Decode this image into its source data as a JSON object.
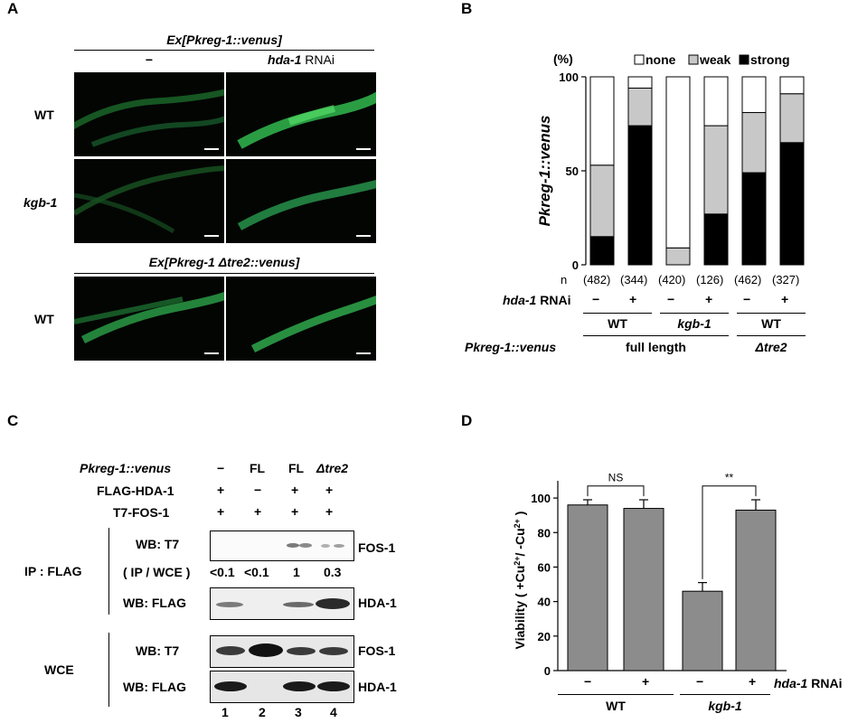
{
  "panelA": {
    "letter": "A",
    "construct1": "Ex[Pkreg-1::venus]",
    "col_minus": "−",
    "col_rnai_gene": "hda-1",
    "col_rnai_suffix": " RNAi",
    "row_wt": "WT",
    "row_kgb1": "kgb-1",
    "construct2": "Ex[Pkreg-1 Δtre2::venus]",
    "row_wt2": "WT",
    "image_colors": {
      "background": "#030503",
      "worm": "#2fae4a",
      "scale_bar": "#ffffff"
    }
  },
  "panelB": {
    "letter": "B",
    "ylabel": "Pkreg-1::venus",
    "legend": {
      "none": "none",
      "weak": "weak",
      "strong": "strong"
    },
    "n_label": "n",
    "n_values": [
      "(482)",
      "(344)",
      "(420)",
      "(126)",
      "(462)",
      "(327)"
    ],
    "rnai_label_gene": "hda-1",
    "rnai_label_suffix": " RNAi",
    "rnai_signs": [
      "−",
      "+",
      "−",
      "+",
      "−",
      "+"
    ],
    "strains": [
      "WT",
      "kgb-1",
      "WT"
    ],
    "row_label": "Pkreg-1::venus",
    "constructs": [
      "full length",
      "Δtre2"
    ]
  },
  "panelC": {
    "letter": "C",
    "row_pkreg": "Pkreg-1::venus",
    "row_flag": "FLAG-HDA-1",
    "row_t7": "T7-FOS-1",
    "pkreg_vals": [
      "−",
      "FL",
      "FL",
      "Δtre2"
    ],
    "flag_vals": [
      "+",
      "−",
      "+",
      "+"
    ],
    "t7_vals": [
      "+",
      "+",
      "+",
      "+"
    ],
    "ip_label": "IP : FLAG",
    "wce_label": "WCE",
    "wb_t7": "WB: T7",
    "ratio_label": "( IP / WCE )",
    "ratios": [
      "<0.1",
      "<0.1",
      "1",
      "0.3"
    ],
    "wb_flag": "WB: FLAG",
    "wb_t7_2": "WB: T7",
    "wb_flag_2": "WB: FLAG",
    "protein_fos": "FOS-1",
    "protein_hda": "HDA-1",
    "protein_fos_2": "FOS-1",
    "protein_hda_2": "HDA-1",
    "lanes": [
      "1",
      "2",
      "3",
      "4"
    ]
  },
  "panelD": {
    "letter": "D",
    "ns_label": "NS",
    "sig_label": "**",
    "rnai_gene": "hda-1",
    "rnai_suffix": " RNAi",
    "signs": [
      "−",
      "+",
      "−",
      "+"
    ],
    "strains": [
      "WT",
      "kgb-1"
    ]
  },
  "chart_data": [
    {
      "type": "bar",
      "stacked": true,
      "categories": [
        "1",
        "2",
        "3",
        "4",
        "5",
        "6"
      ],
      "series": [
        {
          "name": "strong",
          "values": [
            15,
            74,
            0,
            27,
            49,
            65
          ],
          "color": "#000000"
        },
        {
          "name": "weak",
          "values": [
            38,
            20,
            9,
            47,
            32,
            26
          ],
          "color": "#c8c8c8"
        },
        {
          "name": "none",
          "values": [
            47,
            6,
            91,
            26,
            19,
            9
          ],
          "color": "#ffffff"
        }
      ],
      "ylabel": "Pkreg-1::venus",
      "yunit": "(%)",
      "ylim": [
        0,
        100
      ],
      "yticks": [
        0,
        50,
        100
      ],
      "legend_position": "top"
    },
    {
      "type": "bar",
      "categories": [
        "1",
        "2",
        "3",
        "4"
      ],
      "values": [
        96,
        94,
        46,
        93
      ],
      "errors": [
        3,
        5,
        5,
        6
      ],
      "ylabel": "Viability ( +Cu2+/ -Cu2+ )",
      "ylim": [
        0,
        110
      ],
      "yticks": [
        0,
        20,
        40,
        60,
        80,
        100
      ],
      "bar_color": "#8c8c8c"
    }
  ]
}
